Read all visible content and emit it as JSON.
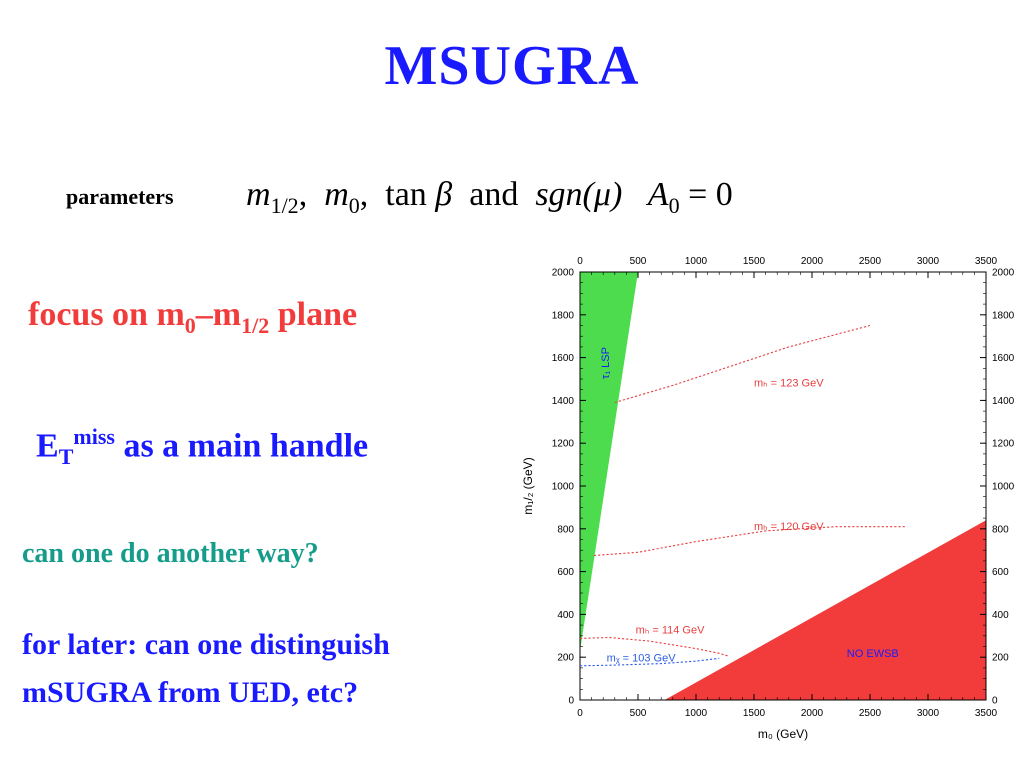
{
  "slide": {
    "title": "MSUGRA",
    "params_label": "parameters",
    "params_math": {
      "m_half": "m",
      "m_half_sub": "1/2",
      "m0": "m",
      "m0_sub": "0",
      "tan": "tan",
      "beta": "β",
      "and": "and",
      "sgn": "sgn(μ)",
      "a0": "A",
      "a0_sub": "0",
      "a0_eq": "= 0"
    },
    "line1": {
      "pre": "focus on m",
      "sub1": "0",
      "dash": "–m",
      "sub2": "1/2",
      "post": " plane"
    },
    "line2": {
      "e": "E",
      "sub": "T",
      "sup": "miss",
      "post": " as a main handle"
    },
    "line3": "can one do another way?",
    "line4": "for later: can one distinguish",
    "line5": "mSUGRA from UED, etc?"
  },
  "colors": {
    "title": "#1a1aff",
    "focus": "#f23c3c",
    "teal": "#169c8a",
    "lsp_region": "#4ddc4d",
    "ewsb_region": "#f23c3c",
    "contour": "#e84040",
    "chargino": "#2b5ce8"
  },
  "chart_data": {
    "type": "area",
    "xlabel": "m₀ (GeV)",
    "ylabel": "m₁/₂ (GeV)",
    "xlim": [
      0,
      3500
    ],
    "ylim": [
      0,
      2000
    ],
    "x_ticks": [
      0,
      500,
      1000,
      1500,
      2000,
      2500,
      3000,
      3500
    ],
    "y_ticks": [
      0,
      200,
      400,
      600,
      800,
      1000,
      1200,
      1400,
      1600,
      1800,
      2000
    ],
    "grid": false,
    "regions": [
      {
        "name": "τ₁ LSP",
        "color": "#4ddc4d",
        "points": [
          [
            0,
            2000
          ],
          [
            500,
            2000
          ],
          [
            0,
            230
          ]
        ]
      },
      {
        "name": "NO EWSB",
        "color": "#f23c3c",
        "points": [
          [
            730,
            0
          ],
          [
            3500,
            0
          ],
          [
            3500,
            840
          ]
        ]
      }
    ],
    "series": [
      {
        "name": "mₕ = 123 GeV",
        "style": "dotted",
        "color": "#e84040",
        "x": [
          300,
          800,
          1300,
          1800,
          2500
        ],
        "y": [
          1390,
          1470,
          1560,
          1650,
          1750
        ]
      },
      {
        "name": "mₕ = 120 GeV",
        "style": "dotted",
        "color": "#e84040",
        "x": [
          120,
          500,
          1000,
          1600,
          2200,
          2800
        ],
        "y": [
          675,
          690,
          740,
          790,
          810,
          810
        ]
      },
      {
        "name": "mₕ = 114 GeV",
        "style": "dotted",
        "color": "#e84040",
        "x": [
          0,
          250,
          600,
          1000,
          1200,
          1280
        ],
        "y": [
          288,
          292,
          275,
          240,
          218,
          205
        ]
      },
      {
        "name": "mᵪ = 103 GeV",
        "style": "dotted",
        "color": "#2b5ce8",
        "x": [
          0,
          300,
          700,
          1000,
          1200
        ],
        "y": [
          160,
          163,
          170,
          182,
          195
        ]
      }
    ],
    "labels": [
      {
        "text": "mₕ = 123 GeV",
        "x": 1500,
        "y": 1465,
        "color": "#e84040"
      },
      {
        "text": "mₕ = 120 GeV",
        "x": 1500,
        "y": 795,
        "color": "#e84040"
      },
      {
        "text": "mₕ = 114 GeV",
        "x": 480,
        "y": 310,
        "color": "#e84040"
      },
      {
        "text": "mᵪ = 103 GeV",
        "x": 230,
        "y": 180,
        "color": "#2b5ce8"
      },
      {
        "text": "NO EWSB",
        "x": 2300,
        "y": 200,
        "color": "#1a1aff"
      },
      {
        "text": "τ₁ LSP",
        "x": 250,
        "y": 1500,
        "color": "#1a1aff",
        "rotate": true
      }
    ]
  }
}
